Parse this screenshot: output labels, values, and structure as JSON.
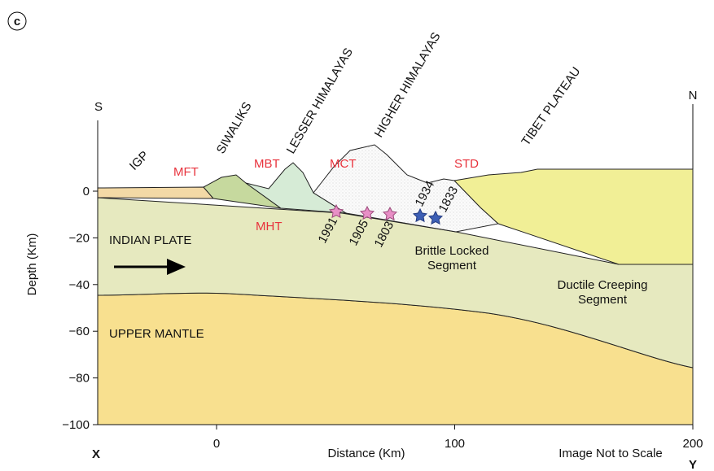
{
  "panel_label": "c",
  "ends": {
    "south": "S",
    "north": "N",
    "left": "X",
    "right": "Y"
  },
  "axes": {
    "x_label": "Distance (Km)",
    "y_label": "Depth (Km)",
    "xticks": [
      {
        "value": 0,
        "label": "0"
      },
      {
        "value": 100,
        "label": "100"
      },
      {
        "value": 200,
        "label": "200"
      }
    ],
    "yticks": [
      {
        "value": 0,
        "label": "0"
      },
      {
        "value": -20,
        "label": "−20"
      },
      {
        "value": -40,
        "label": "−40"
      },
      {
        "value": -60,
        "label": "−60"
      },
      {
        "value": -80,
        "label": "−80"
      },
      {
        "value": -100,
        "label": "−100"
      }
    ]
  },
  "note": "Image Not to Scale",
  "regions": [
    "IGP",
    "SIWALIKS",
    "LESSER HIMALAYAS",
    "HIGHER HIMALAYAS",
    "TIBET PLATEAU"
  ],
  "faults": [
    "MFT",
    "MBT",
    "MCT",
    "STD",
    "MHT"
  ],
  "layers": [
    "INDIAN PLATE",
    "UPPER MANTLE"
  ],
  "segments": [
    [
      "Brittle Locked",
      "Segment"
    ],
    [
      "Ductile Creeping",
      "Segment"
    ]
  ],
  "earthquakes": [
    "1991",
    "1905",
    "1803",
    "1934",
    "1833"
  ]
}
